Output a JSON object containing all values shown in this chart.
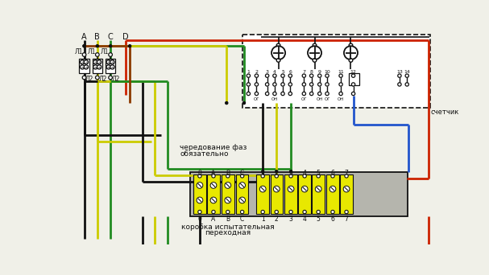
{
  "bg": "#f0f0e8",
  "BK": "#111111",
  "YL": "#cccc00",
  "GN": "#228b22",
  "RD": "#cc2200",
  "BR": "#8B3a00",
  "BL": "#2255cc",
  "GY": "#aaaaaa",
  "text_chered1": "чередование фаз",
  "text_chered2": "обязательно",
  "text_korobka1": "коробка испытательная",
  "text_korobka2": "переходная",
  "text_schetchik": "счетчик",
  "col_labels": [
    "A",
    "B",
    "C",
    "D"
  ],
  "meter_terms": [
    "1",
    "2",
    "3",
    "4",
    "5",
    "6",
    "7",
    "8",
    "9",
    "10",
    "11",
    "12",
    "13",
    "14"
  ],
  "tb_labels": [
    "0",
    "A",
    "B",
    "C",
    "1",
    "2",
    "3",
    "4",
    "5",
    "6",
    "7"
  ],
  "og_labels": [
    "ОГ",
    "ОН",
    "ОГ",
    "ОН",
    "ОГ",
    "ОН"
  ],
  "L1": "Л1",
  "L2": "Л2"
}
